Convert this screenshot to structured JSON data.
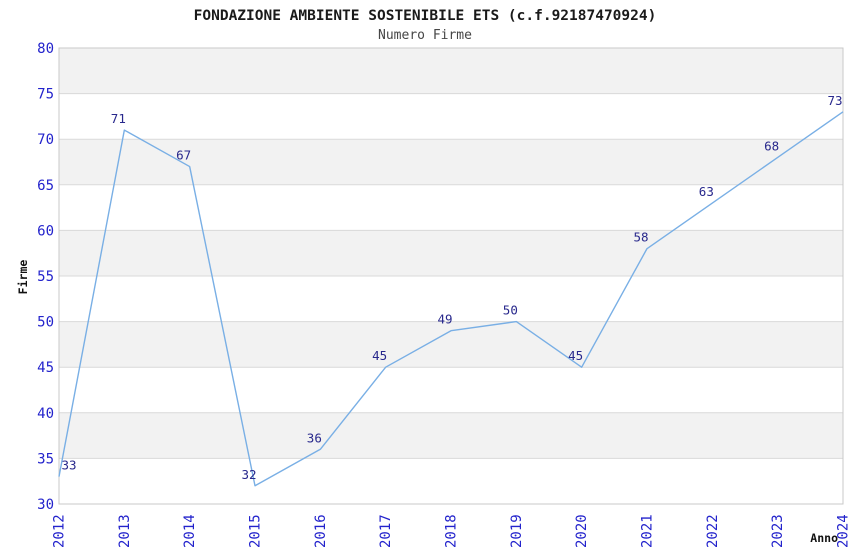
{
  "chart_data": {
    "type": "line",
    "title": "FONDAZIONE AMBIENTE SOSTENIBILE ETS (c.f.92187470924)",
    "subtitle": "Numero Firme",
    "xlabel": "Anno",
    "ylabel": "Firme",
    "categories": [
      "2012",
      "2013",
      "2014",
      "2015",
      "2016",
      "2017",
      "2018",
      "2019",
      "2020",
      "2021",
      "2022",
      "2023",
      "2024"
    ],
    "series": [
      {
        "name": "Numero Firme",
        "values": [
          33,
          71,
          67,
          32,
          36,
          45,
          49,
          50,
          45,
          58,
          63,
          68,
          73
        ]
      }
    ],
    "point_labels_shown": true,
    "ylim": [
      30,
      80
    ],
    "ytick_step": 5,
    "yticks": [
      30,
      35,
      40,
      45,
      50,
      55,
      60,
      65,
      70,
      75,
      80
    ],
    "grid": "horizontal",
    "banding": "alternating horizontal gray bands",
    "legend": "none",
    "x_tick_rotation": -90,
    "colors": {
      "line": "#79afe5",
      "tick_labels": "#2323cc",
      "point_labels": "#28288c",
      "band": "#f2f2f2",
      "grid": "#d9d9d9",
      "border": "#c9c9c9",
      "title": "#1a1a1a",
      "subtitle": "#464646",
      "axis_titles": "#111111",
      "background": "#ffffff"
    }
  }
}
